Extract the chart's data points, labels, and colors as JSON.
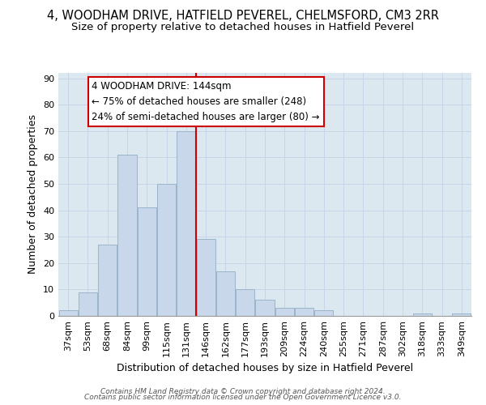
{
  "title": "4, WOODHAM DRIVE, HATFIELD PEVEREL, CHELMSFORD, CM3 2RR",
  "subtitle": "Size of property relative to detached houses in Hatfield Peverel",
  "xlabel": "Distribution of detached houses by size in Hatfield Peverel",
  "ylabel": "Number of detached properties",
  "categories": [
    "37sqm",
    "53sqm",
    "68sqm",
    "84sqm",
    "99sqm",
    "115sqm",
    "131sqm",
    "146sqm",
    "162sqm",
    "177sqm",
    "193sqm",
    "209sqm",
    "224sqm",
    "240sqm",
    "255sqm",
    "271sqm",
    "287sqm",
    "302sqm",
    "318sqm",
    "333sqm",
    "349sqm"
  ],
  "values": [
    2,
    9,
    27,
    61,
    41,
    50,
    70,
    29,
    17,
    10,
    6,
    3,
    3,
    2,
    0,
    0,
    0,
    0,
    1,
    0,
    1
  ],
  "bar_color": "#c8d8ea",
  "bar_edge_color": "#9ab4cc",
  "red_line_index": 7,
  "annotation_title": "4 WOODHAM DRIVE: 144sqm",
  "annotation_line1": "← 75% of detached houses are smaller (248)",
  "annotation_line2": "24% of semi-detached houses are larger (80) →",
  "annotation_box_facecolor": "#ffffff",
  "annotation_box_edgecolor": "#cc0000",
  "ylim": [
    0,
    92
  ],
  "yticks": [
    0,
    10,
    20,
    30,
    40,
    50,
    60,
    70,
    80,
    90
  ],
  "grid_color": "#c8d4e8",
  "background_color": "#dce8f0",
  "footer_line1": "Contains HM Land Registry data © Crown copyright and database right 2024.",
  "footer_line2": "Contains public sector information licensed under the Open Government Licence v3.0.",
  "title_fontsize": 10.5,
  "subtitle_fontsize": 9.5,
  "axis_label_fontsize": 9,
  "tick_fontsize": 8,
  "annotation_fontsize": 8.5,
  "footer_fontsize": 6.5
}
